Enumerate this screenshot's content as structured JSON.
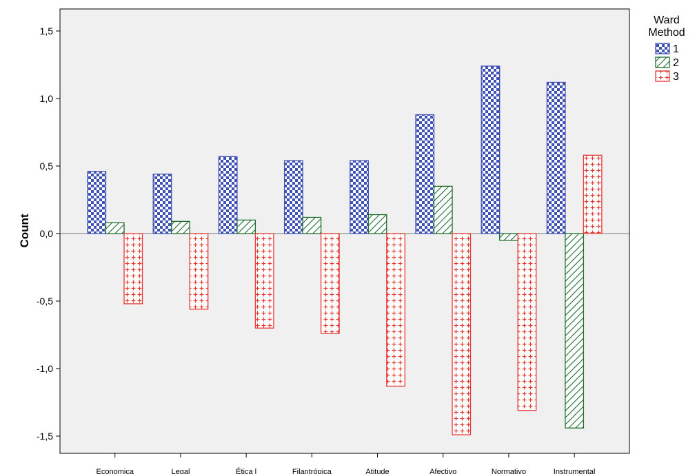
{
  "chart_data": {
    "type": "bar",
    "title": "",
    "xlabel": "",
    "ylabel": "Count",
    "ylim": [
      -1.65,
      1.65
    ],
    "yticks": [
      1.5,
      1.0,
      0.5,
      0.0,
      -0.5,
      -1.0,
      -1.5
    ],
    "ytick_labels": [
      "1,5",
      "1,0",
      "0,5",
      "0,0",
      "-0,5",
      "-1,0",
      "-1,5"
    ],
    "categories": [
      "Economica",
      "Legal",
      "Ética l",
      "Filantrópica",
      "Atitude",
      "Afectivo",
      "Normativo",
      "Instrumental"
    ],
    "series": [
      {
        "name": "1",
        "pattern": "checker",
        "color": "#3f51b5",
        "values": [
          0.46,
          0.44,
          0.57,
          0.54,
          0.54,
          0.88,
          1.24,
          1.12
        ]
      },
      {
        "name": "2",
        "pattern": "diagonal",
        "color": "#1e6b2e",
        "values": [
          0.08,
          0.09,
          0.1,
          0.12,
          0.14,
          0.35,
          -0.05,
          -1.44
        ]
      },
      {
        "name": "3",
        "pattern": "plus",
        "color": "#e53935",
        "values": [
          -0.52,
          -0.56,
          -0.7,
          -0.74,
          -1.13,
          -1.49,
          -1.31,
          0.58
        ]
      }
    ],
    "legend": {
      "title_line1": "Ward",
      "title_line2": "Method",
      "position": "right"
    },
    "background": "#f0f0f0",
    "grid": false
  }
}
